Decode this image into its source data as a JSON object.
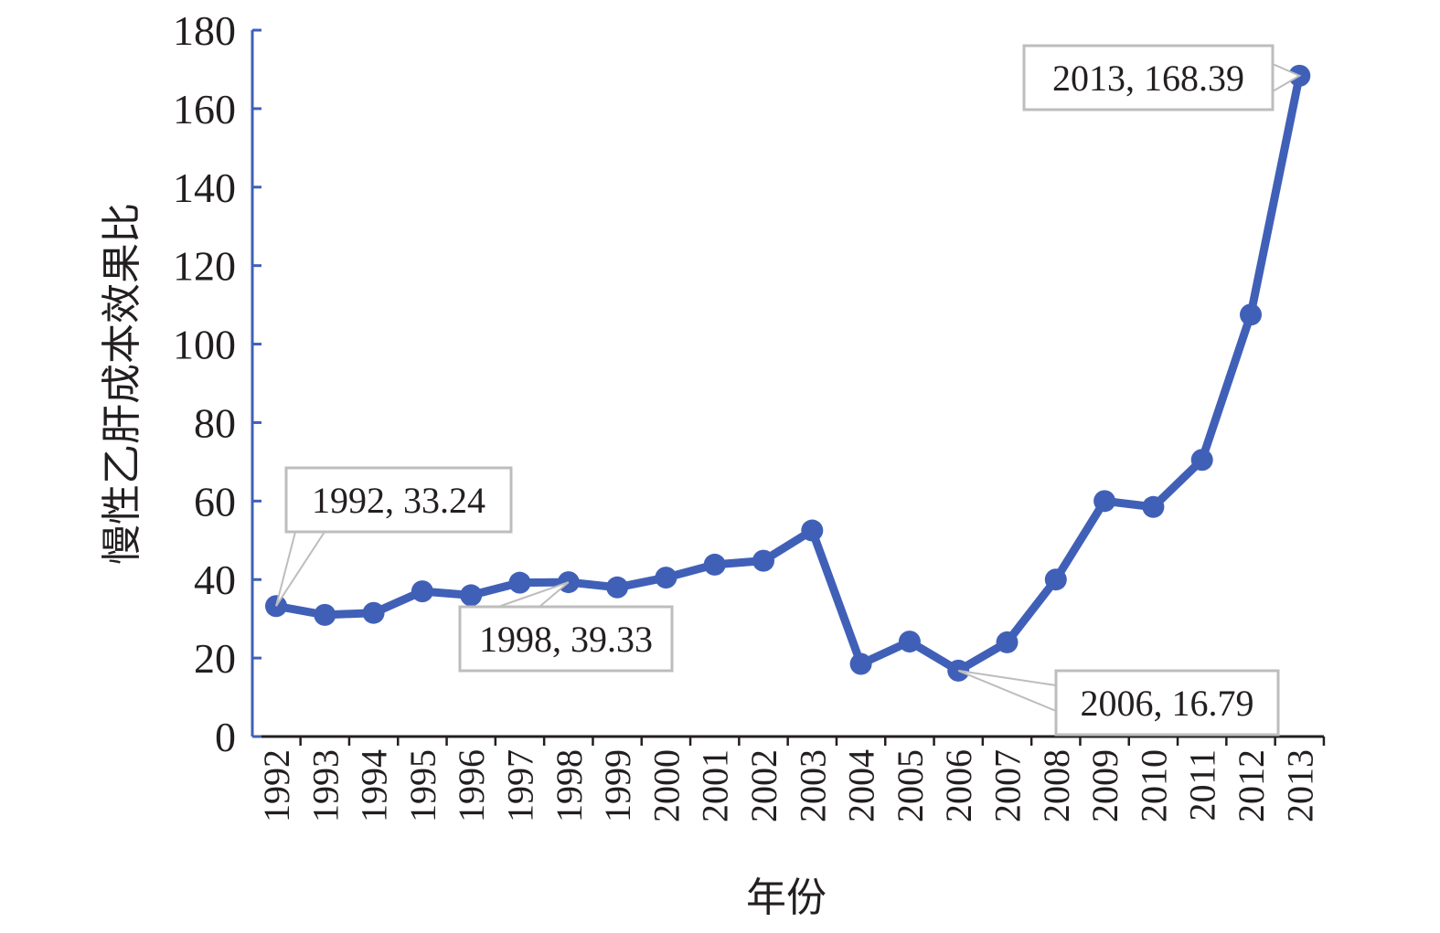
{
  "colors": {
    "series": "#4060b8",
    "axis": "#231f20",
    "callout_border": "#bdbdbd"
  },
  "chart_data": {
    "type": "line",
    "xlabel": "年份",
    "ylabel": "慢性乙肝成本效果比",
    "ylim": [
      0,
      180
    ],
    "yticks": [
      0,
      20,
      40,
      60,
      80,
      100,
      120,
      140,
      160,
      180
    ],
    "grid": false,
    "categories": [
      "1992",
      "1993",
      "1994",
      "1995",
      "1996",
      "1997",
      "1998",
      "1999",
      "2000",
      "2001",
      "2002",
      "2003",
      "2004",
      "2005",
      "2006",
      "2007",
      "2008",
      "2009",
      "2010",
      "2011",
      "2012",
      "2013"
    ],
    "series": [
      {
        "values": [
          33.24,
          31.0,
          31.5,
          37.0,
          36.0,
          39.2,
          39.33,
          38.0,
          40.5,
          43.8,
          44.8,
          52.5,
          18.5,
          24.2,
          16.79,
          24.0,
          40.0,
          60.0,
          58.5,
          70.5,
          107.5,
          168.39
        ]
      }
    ],
    "annotations": [
      {
        "category": "1992",
        "text": "1992, 33.24"
      },
      {
        "category": "1998",
        "text": "1998, 39.33"
      },
      {
        "category": "2006",
        "text": "2006, 16.79"
      },
      {
        "category": "2013",
        "text": "2013, 168.39"
      }
    ]
  }
}
